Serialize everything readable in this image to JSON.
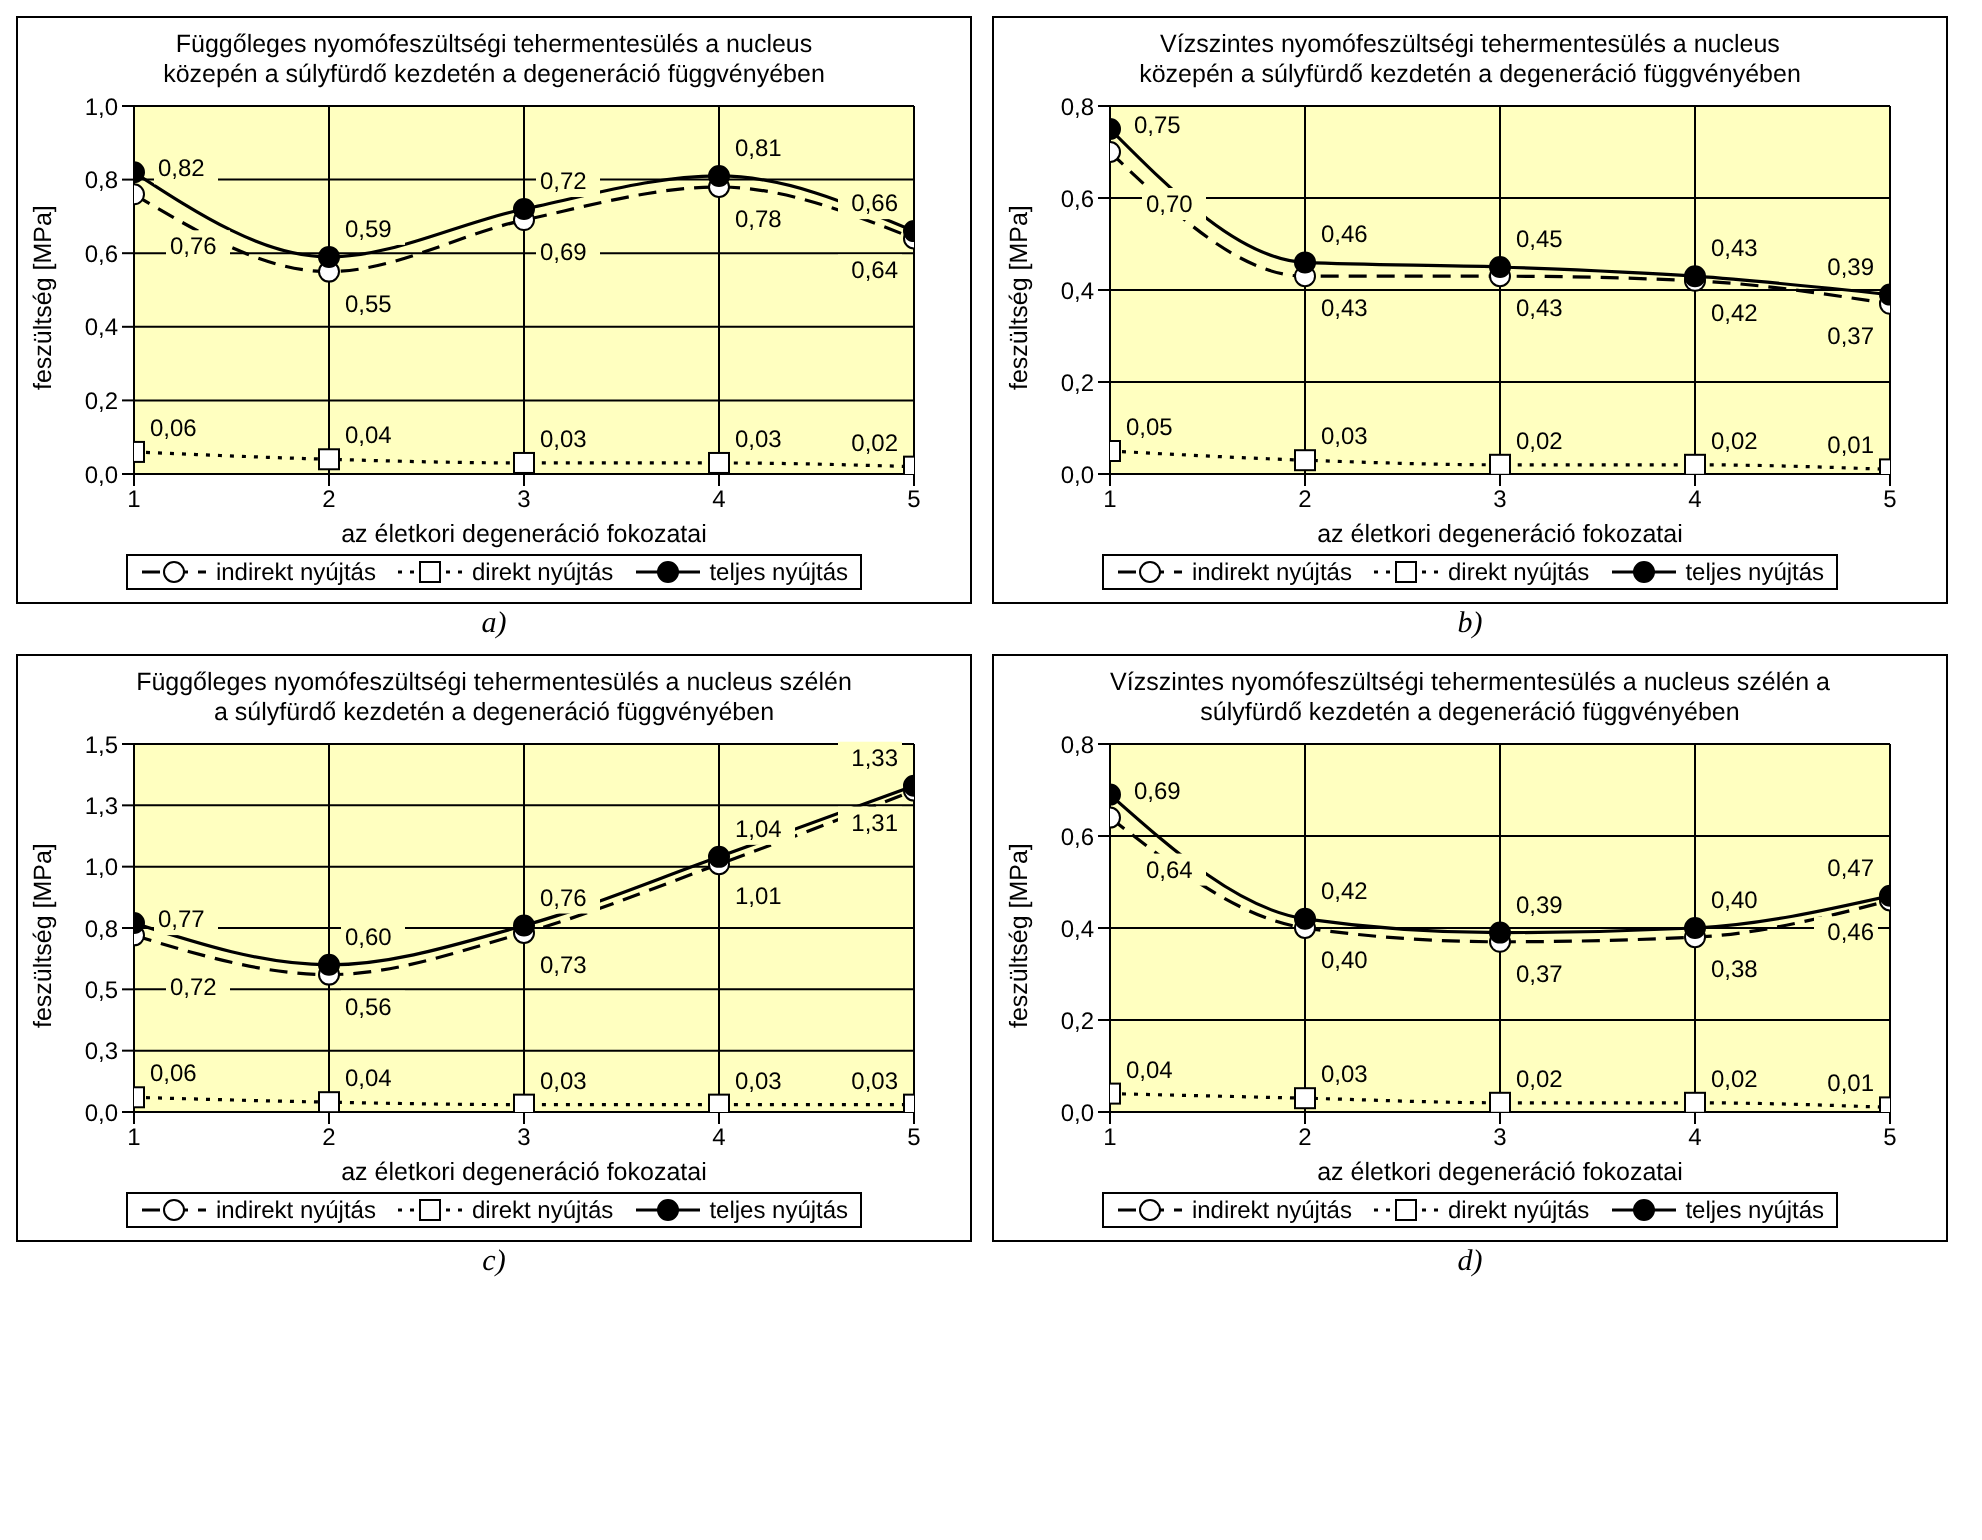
{
  "chart_data": [
    {
      "type": "line",
      "title": "Függőleges nyomófeszültségi tehermentesülés a nucleus közepén a súlyfürdő kezdetén a degeneráció függvényében",
      "xlabel": "az életkori degeneráció fokozatai",
      "ylabel": "feszültség [MPa]",
      "x": [
        1,
        2,
        3,
        4,
        5
      ],
      "xlim": [
        1,
        5
      ],
      "xticks": [
        1,
        2,
        3,
        4,
        5
      ],
      "ylim": [
        0,
        1
      ],
      "yticks": [
        {
          "value": 0,
          "label": "0,0"
        },
        {
          "value": 0.2,
          "label": "0,2"
        },
        {
          "value": 0.4,
          "label": "0,4"
        },
        {
          "value": 0.6,
          "label": "0,6"
        },
        {
          "value": 0.8,
          "label": "0,8"
        },
        {
          "value": 1,
          "label": "1,0"
        }
      ],
      "grid": true,
      "legend": "bottom",
      "annotations": [
        "a)"
      ],
      "series": [
        {
          "name": "indirekt nyújtás",
          "color": "#000000",
          "marker": "circle",
          "line_style": "dashed",
          "values": [
            0.76,
            0.55,
            0.69,
            0.78,
            0.64
          ],
          "value_labels": [
            "0,76",
            "0,55",
            "0,69",
            "0,78",
            "0,64"
          ]
        },
        {
          "name": "direkt nyújtás",
          "color": "#000000",
          "marker": "square",
          "line_style": "dotted",
          "values": [
            0.06,
            0.04,
            0.03,
            0.03,
            0.02
          ],
          "value_labels": [
            "0,06",
            "0,04",
            "0,03",
            "0,03",
            "0,02"
          ]
        },
        {
          "name": "teljes nyújtás",
          "color": "#000000",
          "marker": "circle",
          "line_style": "solid",
          "values": [
            0.82,
            0.59,
            0.72,
            0.81,
            0.66
          ],
          "value_labels": [
            "0,82",
            "0,59",
            "0,72",
            "0,81",
            "0,66"
          ]
        }
      ]
    },
    {
      "type": "line",
      "title": "Vízszintes nyomófeszültségi tehermentesülés a nucleus közepén a súlyfürdő kezdetén a degeneráció függvényében",
      "xlabel": "az életkori degeneráció fokozatai",
      "ylabel": "feszültség [MPa]",
      "x": [
        1,
        2,
        3,
        4,
        5
      ],
      "xlim": [
        1,
        5
      ],
      "xticks": [
        1,
        2,
        3,
        4,
        5
      ],
      "ylim": [
        0,
        0.8
      ],
      "yticks": [
        {
          "value": 0,
          "label": "0,0"
        },
        {
          "value": 0.2,
          "label": "0,2"
        },
        {
          "value": 0.4,
          "label": "0,4"
        },
        {
          "value": 0.6,
          "label": "0,6"
        },
        {
          "value": 0.8,
          "label": "0,8"
        }
      ],
      "grid": true,
      "legend": "bottom",
      "annotations": [
        "b)"
      ],
      "series": [
        {
          "name": "indirekt nyújtás",
          "color": "#000000",
          "marker": "circle",
          "line_style": "dashed",
          "values": [
            0.7,
            0.43,
            0.43,
            0.42,
            0.37
          ],
          "value_labels": [
            "0,70",
            "0,43",
            "0,43",
            "0,42",
            "0,37"
          ]
        },
        {
          "name": "direkt nyújtás",
          "color": "#000000",
          "marker": "square",
          "line_style": "dotted",
          "values": [
            0.05,
            0.03,
            0.02,
            0.02,
            0.01
          ],
          "value_labels": [
            "0,05",
            "0,03",
            "0,02",
            "0,02",
            "0,01"
          ]
        },
        {
          "name": "teljes nyújtás",
          "color": "#000000",
          "marker": "circle",
          "line_style": "solid",
          "values": [
            0.75,
            0.46,
            0.45,
            0.43,
            0.39
          ],
          "value_labels": [
            "0,75",
            "0,46",
            "0,45",
            "0,43",
            "0,39"
          ]
        }
      ]
    },
    {
      "type": "line",
      "title": "Függőleges nyomófeszültségi tehermentesülés a nucleus szélén a súlyfürdő kezdetén a degeneráció függvényében",
      "xlabel": "az életkori degeneráció fokozatai",
      "ylabel": "feszültség [MPa]",
      "x": [
        1,
        2,
        3,
        4,
        5
      ],
      "xlim": [
        1,
        5
      ],
      "xticks": [
        1,
        2,
        3,
        4,
        5
      ],
      "ylim": [
        0,
        1.5
      ],
      "yticks": [
        {
          "value": 0,
          "label": "0,0"
        },
        {
          "value": 0.25,
          "label": "0,3"
        },
        {
          "value": 0.5,
          "label": "0,5"
        },
        {
          "value": 0.75,
          "label": "0,8"
        },
        {
          "value": 1,
          "label": "1,0"
        },
        {
          "value": 1.25,
          "label": "1,3"
        },
        {
          "value": 1.5,
          "label": "1,5"
        }
      ],
      "grid": true,
      "legend": "bottom",
      "annotations": [
        "c)"
      ],
      "series": [
        {
          "name": "indirekt nyújtás",
          "color": "#000000",
          "marker": "circle",
          "line_style": "dashed",
          "values": [
            0.72,
            0.56,
            0.73,
            1.01,
            1.31
          ],
          "value_labels": [
            "0,72",
            "0,56",
            "0,73",
            "1,01",
            "1,31"
          ]
        },
        {
          "name": "direkt nyújtás",
          "color": "#000000",
          "marker": "square",
          "line_style": "dotted",
          "values": [
            0.06,
            0.04,
            0.03,
            0.03,
            0.03
          ],
          "value_labels": [
            "0,06",
            "0,04",
            "0,03",
            "0,03",
            "0,03"
          ]
        },
        {
          "name": "teljes nyújtás",
          "color": "#000000",
          "marker": "circle",
          "line_style": "solid",
          "values": [
            0.77,
            0.6,
            0.76,
            1.04,
            1.33
          ],
          "value_labels": [
            "0,77",
            "0,60",
            "0,76",
            "1,04",
            "1,33"
          ]
        }
      ]
    },
    {
      "type": "line",
      "title": "Vízszintes nyomófeszültségi tehermentesülés a nucleus szélén a súlyfürdő kezdetén a degeneráció függvényében",
      "xlabel": "az életkori degeneráció fokozatai",
      "ylabel": "feszültség [MPa]",
      "x": [
        1,
        2,
        3,
        4,
        5
      ],
      "xlim": [
        1,
        5
      ],
      "xticks": [
        1,
        2,
        3,
        4,
        5
      ],
      "ylim": [
        0,
        0.8
      ],
      "yticks": [
        {
          "value": 0,
          "label": "0,0"
        },
        {
          "value": 0.2,
          "label": "0,2"
        },
        {
          "value": 0.4,
          "label": "0,4"
        },
        {
          "value": 0.6,
          "label": "0,6"
        },
        {
          "value": 0.8,
          "label": "0,8"
        }
      ],
      "grid": true,
      "legend": "bottom",
      "annotations": [
        "d)"
      ],
      "series": [
        {
          "name": "indirekt nyújtás",
          "color": "#000000",
          "marker": "circle",
          "line_style": "dashed",
          "values": [
            0.64,
            0.4,
            0.37,
            0.38,
            0.46
          ],
          "value_labels": [
            "0,64",
            "0,40",
            "0,37",
            "0,38",
            "0,46"
          ]
        },
        {
          "name": "direkt nyújtás",
          "color": "#000000",
          "marker": "square",
          "line_style": "dotted",
          "values": [
            0.04,
            0.03,
            0.02,
            0.02,
            0.01
          ],
          "value_labels": [
            "0,04",
            "0,03",
            "0,02",
            "0,02",
            "0,01"
          ]
        },
        {
          "name": "teljes nyújtás",
          "color": "#000000",
          "marker": "circle",
          "line_style": "solid",
          "values": [
            0.69,
            0.42,
            0.39,
            0.4,
            0.47
          ],
          "value_labels": [
            "0,69",
            "0,42",
            "0,39",
            "0,40",
            "0,47"
          ]
        }
      ]
    }
  ]
}
